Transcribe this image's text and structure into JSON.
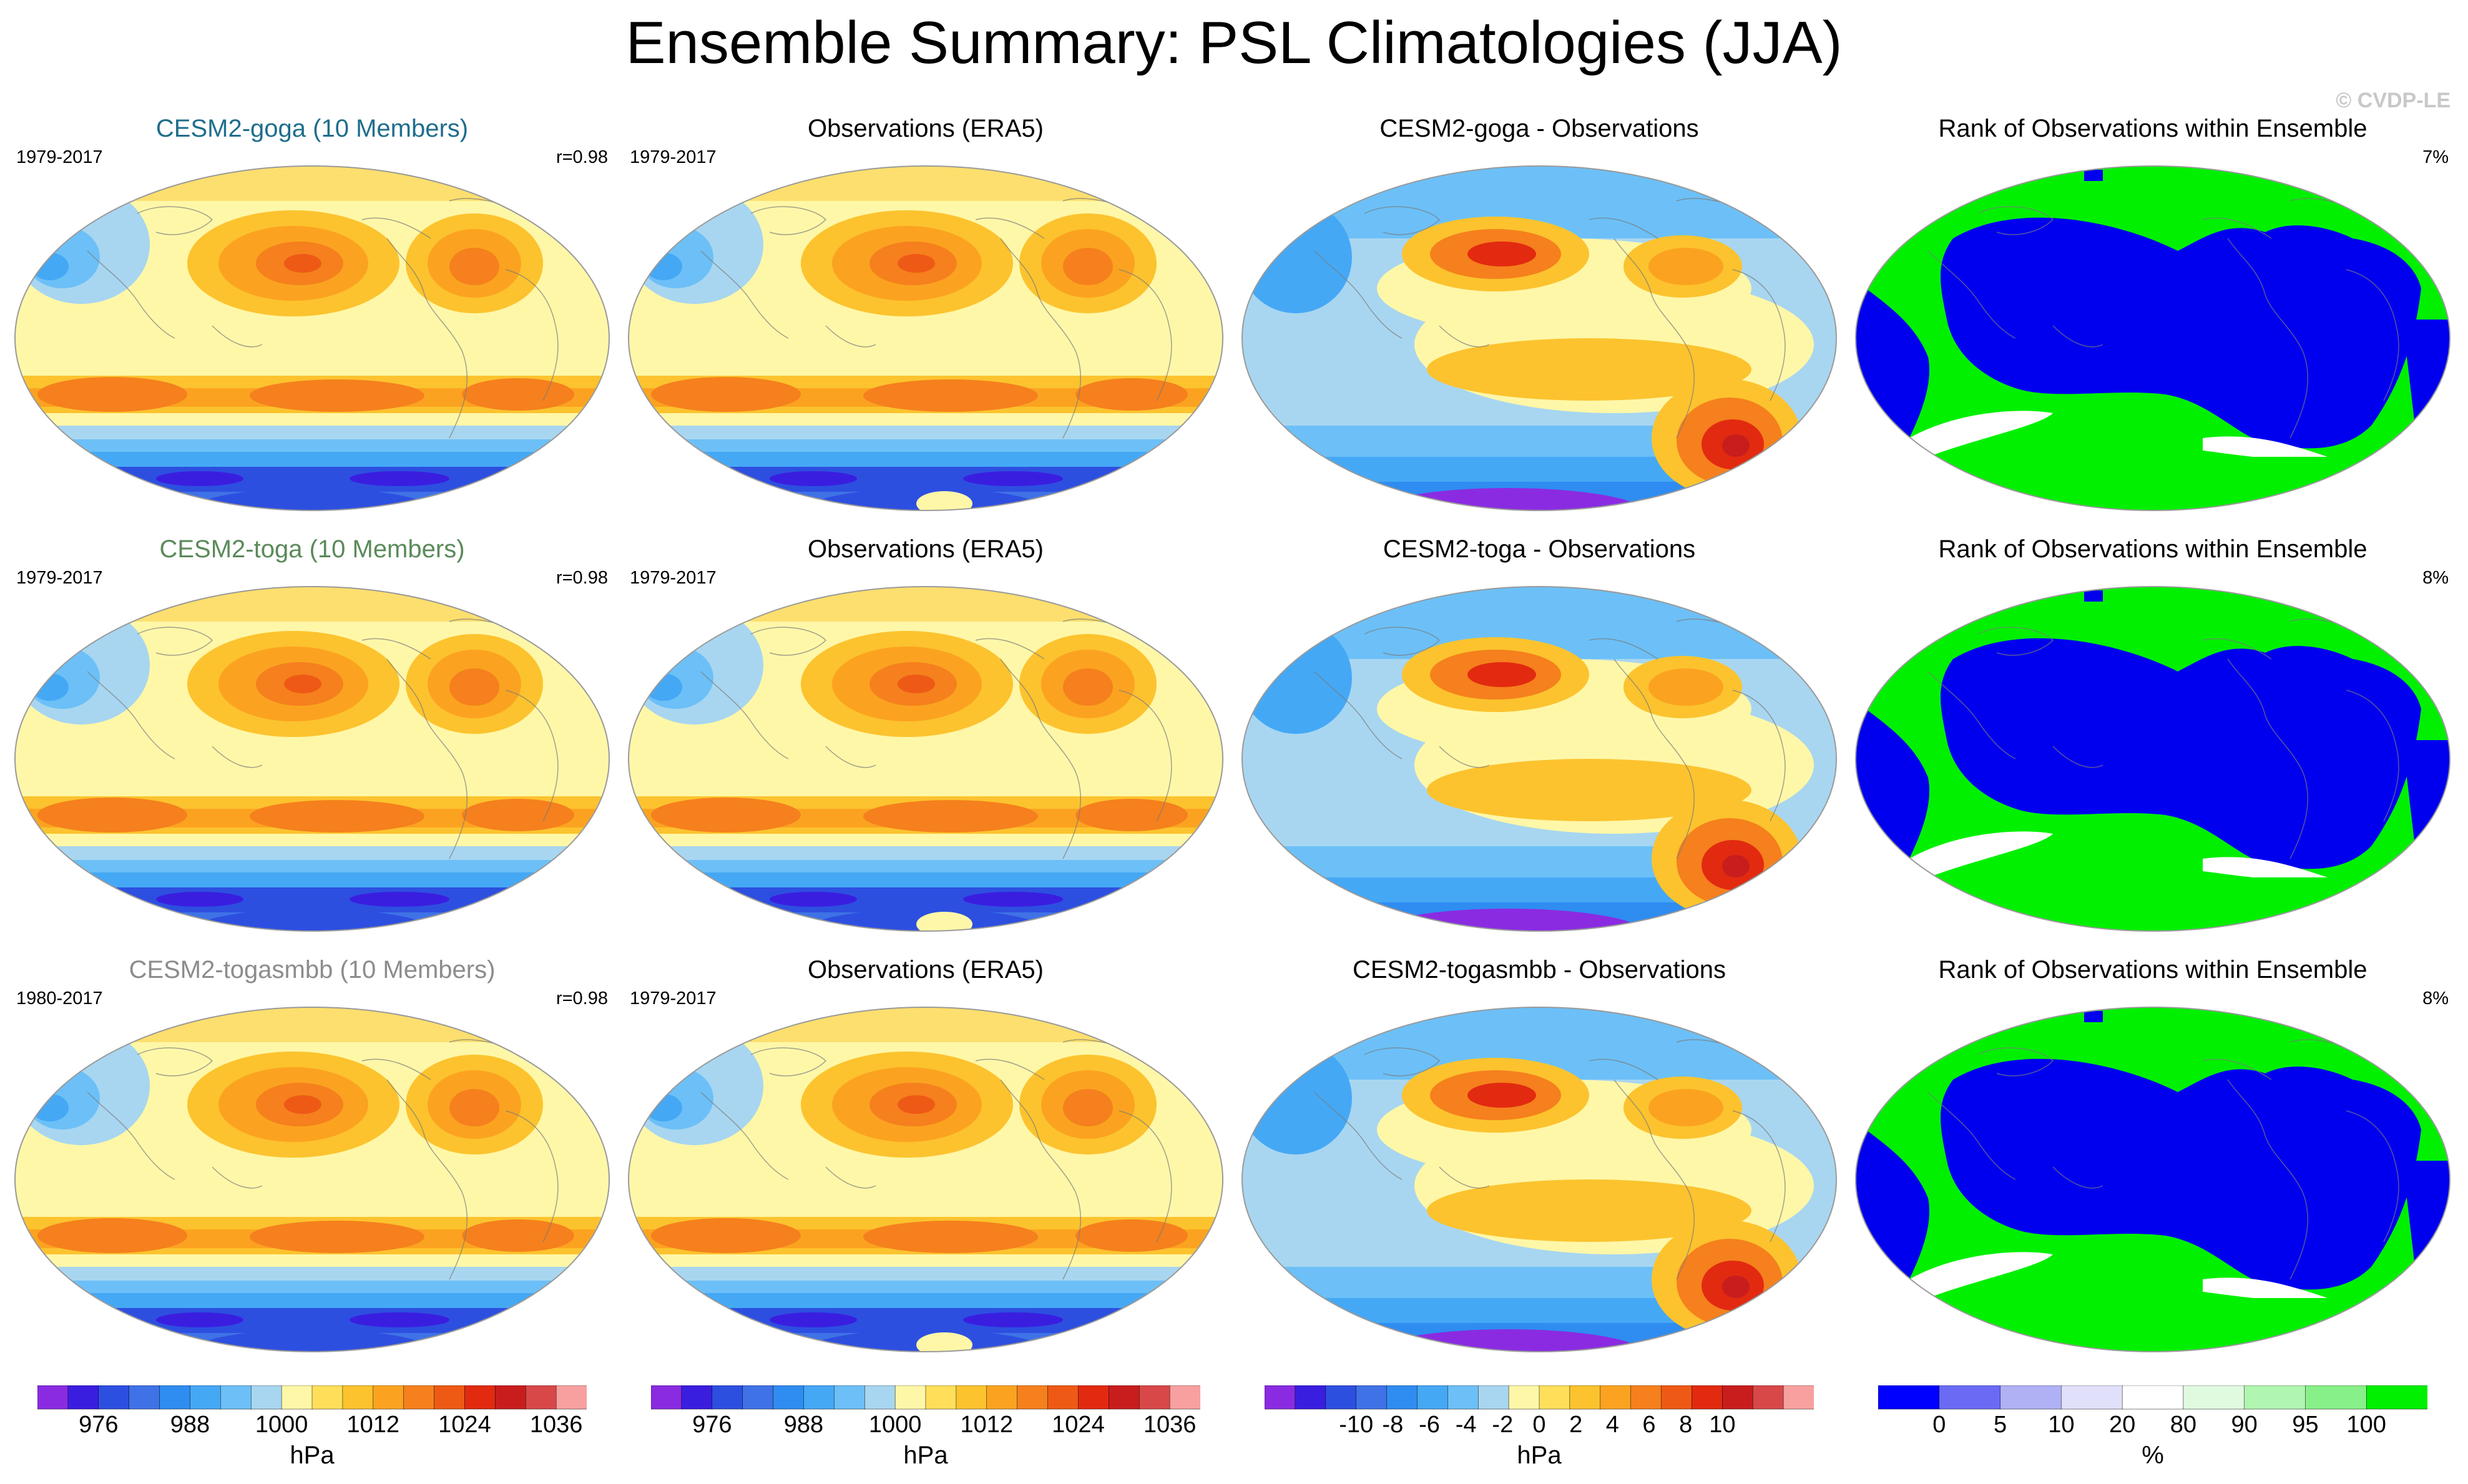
{
  "title": "Ensemble Summary: PSL Climatologies (JJA)",
  "watermark": "© CVDP-LE",
  "rows": [
    {
      "model": {
        "title": "CESM2-goga (10 Members)",
        "title_color": "#1f6e8c",
        "years": "1979-2017",
        "stat": "r=0.98"
      },
      "obs": {
        "title": "Observations (ERA5)",
        "years": "1979-2017"
      },
      "diff": {
        "title": "CESM2-goga - Observations"
      },
      "rank": {
        "title": "Rank of Observations within Ensemble",
        "stat": "7%"
      }
    },
    {
      "model": {
        "title": "CESM2-toga (10 Members)",
        "title_color": "#5a8a5a",
        "years": "1979-2017",
        "stat": "r=0.98"
      },
      "obs": {
        "title": "Observations (ERA5)",
        "years": "1979-2017"
      },
      "diff": {
        "title": "CESM2-toga - Observations"
      },
      "rank": {
        "title": "Rank of Observations within Ensemble",
        "stat": "8%"
      }
    },
    {
      "model": {
        "title": "CESM2-togasmbb (10 Members)",
        "title_color": "#8c8c8c",
        "years": "1980-2017",
        "stat": "r=0.98"
      },
      "obs": {
        "title": "Observations (ERA5)",
        "years": "1979-2017"
      },
      "diff": {
        "title": "CESM2-togasmbb - Observations"
      },
      "rank": {
        "title": "Rank of Observations within Ensemble",
        "stat": "8%"
      }
    }
  ],
  "colorbars": [
    {
      "unit": "hPa",
      "ticks": [
        "976",
        "988",
        "1000",
        "1012",
        "1024",
        "1036"
      ],
      "colors": [
        "#8a2be2",
        "#3a1ee0",
        "#2d4fe0",
        "#3f72e6",
        "#2f8cf0",
        "#45a8f5",
        "#6cc0f7",
        "#a8d6f0",
        "#fff7a8",
        "#ffdf5a",
        "#fcc32e",
        "#fba320",
        "#f5801d",
        "#ee5a16",
        "#e22a10",
        "#c81d1d",
        "#d84848",
        "#f8a0a0"
      ],
      "tick_positions": [
        0.0,
        4.0,
        8.0,
        12.0,
        16.0,
        20.0
      ]
    },
    {
      "unit": "hPa",
      "ticks": [
        "976",
        "988",
        "1000",
        "1012",
        "1024",
        "1036"
      ],
      "colors": [
        "#8a2be2",
        "#3a1ee0",
        "#2d4fe0",
        "#3f72e6",
        "#2f8cf0",
        "#45a8f5",
        "#6cc0f7",
        "#a8d6f0",
        "#fff7a8",
        "#ffdf5a",
        "#fcc32e",
        "#fba320",
        "#f5801d",
        "#ee5a16",
        "#e22a10",
        "#c81d1d",
        "#d84848",
        "#f8a0a0"
      ],
      "tick_positions": [
        0.0,
        4.0,
        8.0,
        12.0,
        16.0,
        20.0
      ]
    },
    {
      "unit": "hPa",
      "ticks": [
        "-10",
        "-8",
        "-6",
        "-4",
        "-2",
        "0",
        "2",
        "4",
        "6",
        "8",
        "10"
      ],
      "colors": [
        "#8a2be2",
        "#3a1ee0",
        "#2d4fe0",
        "#3f72e6",
        "#2f8cf0",
        "#45a8f5",
        "#6cc0f7",
        "#a8d6f0",
        "#fff7a8",
        "#ffdf5a",
        "#fcc32e",
        "#fba320",
        "#f5801d",
        "#ee5a16",
        "#e22a10",
        "#c81d1d",
        "#d84848",
        "#f8a0a0"
      ],
      "tick_positions": [
        -10,
        -8,
        -6,
        -4,
        -2,
        0,
        2,
        4,
        6,
        8,
        10
      ]
    },
    {
      "unit": "%",
      "ticks": [
        "0",
        "5",
        "10",
        "20",
        "80",
        "90",
        "95",
        "100"
      ],
      "colors": [
        "#0000ff",
        "#6a6af5",
        "#b0b0f5",
        "#e0e0fa",
        "#ffffff",
        "#e0fae0",
        "#b0f5b0",
        "#88f088",
        "#00f000"
      ]
    }
  ],
  "colors": {
    "map_bg": "#fff7a8",
    "rank_ocean_blue": "#0000ee",
    "rank_land_green": "#00f000"
  }
}
